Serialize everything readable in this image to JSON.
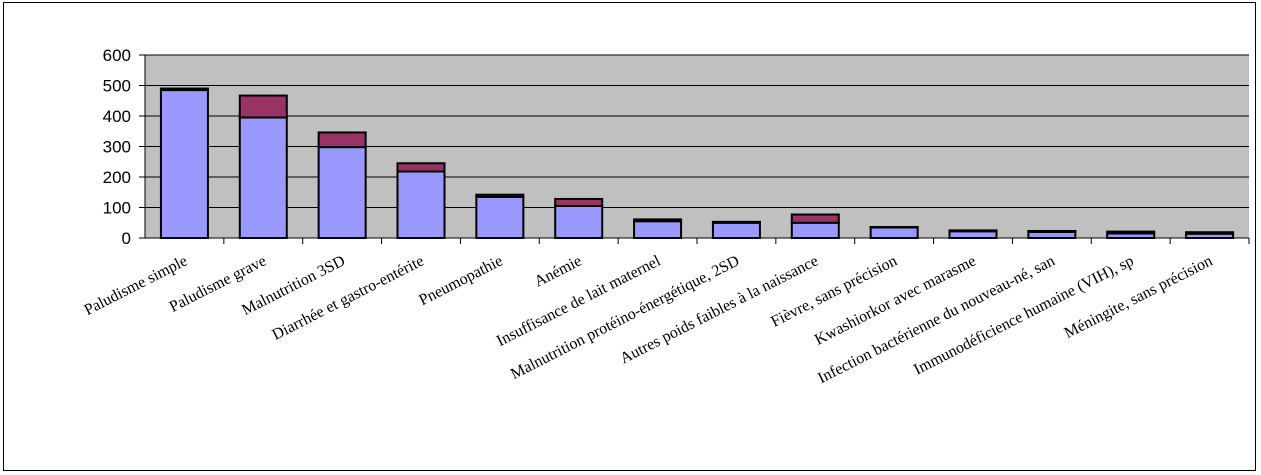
{
  "chart_data": {
    "type": "bar",
    "stacked": true,
    "title": "",
    "xlabel": "",
    "ylabel": "",
    "ylim": [
      0,
      600
    ],
    "yticks": [
      0,
      100,
      200,
      300,
      400,
      500,
      600
    ],
    "grid": true,
    "legend": "none",
    "colors": {
      "plot_background": "#c0c0c0",
      "series_bottom": "#9999ff",
      "series_top": "#993366",
      "gridline": "#000000"
    },
    "categories": [
      "Paludisme simple",
      "Paludisme grave",
      "Malnutrition  3SD",
      "Diarrhée et gastro-entérite",
      "Pneumopathie",
      "Anémie",
      "Insuffisance de lait maternel",
      "Malnutrition protéino-énergétique, 2SD",
      "Autres poids faibles à la naissance",
      "Fièvre, sans précision",
      "Kwashiorkor avec marasme",
      "Infection bactérienne du nouveau-né, san",
      "Immunodéficience humaine (VIH), sp",
      "Méningite, sans précision"
    ],
    "series": [
      {
        "values": [
          485,
          395,
          298,
          218,
          135,
          105,
          55,
          50,
          50,
          35,
          22,
          20,
          15,
          14
        ]
      },
      {
        "values": [
          5,
          72,
          48,
          27,
          7,
          23,
          6,
          3,
          27,
          1,
          3,
          3,
          6,
          5
        ]
      }
    ]
  }
}
